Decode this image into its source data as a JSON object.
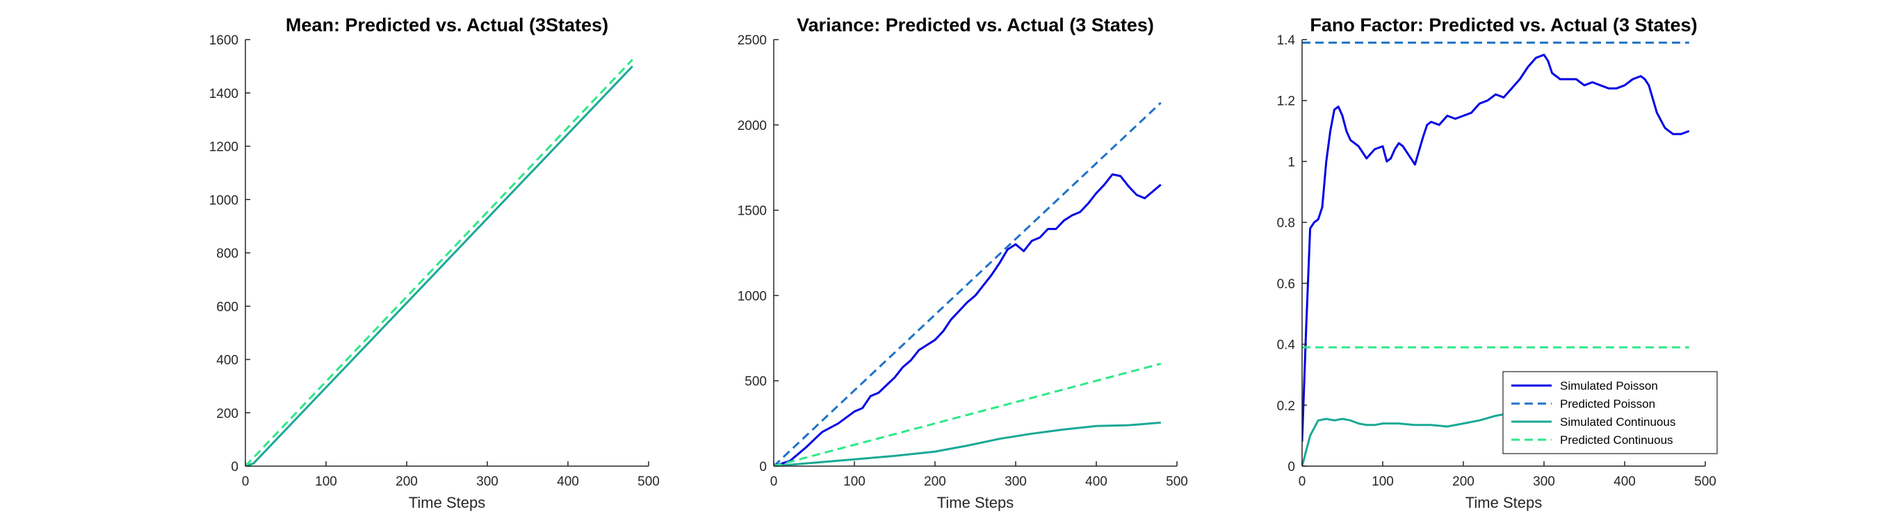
{
  "colors": {
    "sim_poisson": "#0000e6",
    "pred_poisson": "#1f73c8",
    "sim_continuous": "#1aa896",
    "pred_continuous": "#2ee887",
    "axis": "#262626"
  },
  "chart_data": [
    {
      "type": "line",
      "title": "Mean: Predicted vs. Actual (3States)",
      "xlabel": "Time Steps",
      "ylabel": "",
      "xlim": [
        0,
        500
      ],
      "ylim": [
        0,
        1600
      ],
      "xticks": [
        0,
        100,
        200,
        300,
        400,
        500
      ],
      "yticks": [
        0,
        200,
        400,
        600,
        800,
        1000,
        1200,
        1400,
        1600
      ],
      "grid": false,
      "series": [
        {
          "key": "sim_continuous",
          "dashed": false,
          "x": [
            0,
            10,
            480
          ],
          "y": [
            0,
            10,
            1500
          ]
        },
        {
          "key": "pred_continuous",
          "dashed": true,
          "x": [
            0,
            480
          ],
          "y": [
            0,
            1525
          ]
        }
      ]
    },
    {
      "type": "line",
      "title": "Variance: Predicted vs. Actual (3 States)",
      "xlabel": "Time Steps",
      "ylabel": "",
      "xlim": [
        0,
        500
      ],
      "ylim": [
        0,
        2500
      ],
      "xticks": [
        0,
        100,
        200,
        300,
        400,
        500
      ],
      "yticks": [
        0,
        500,
        1000,
        1500,
        2000,
        2500
      ],
      "grid": false,
      "series": [
        {
          "key": "sim_poisson",
          "dashed": false,
          "x": [
            0,
            20,
            40,
            60,
            80,
            100,
            110,
            120,
            130,
            150,
            160,
            170,
            180,
            190,
            200,
            210,
            220,
            230,
            240,
            250,
            260,
            270,
            280,
            290,
            300,
            310,
            320,
            330,
            340,
            350,
            360,
            370,
            380,
            390,
            400,
            410,
            420,
            430,
            440,
            450,
            460,
            470,
            480
          ],
          "y": [
            0,
            30,
            110,
            200,
            250,
            320,
            340,
            410,
            430,
            520,
            580,
            620,
            680,
            710,
            740,
            790,
            860,
            910,
            960,
            1000,
            1060,
            1120,
            1190,
            1270,
            1300,
            1260,
            1320,
            1340,
            1390,
            1390,
            1440,
            1470,
            1490,
            1540,
            1600,
            1650,
            1710,
            1700,
            1640,
            1590,
            1570,
            1610,
            1650
          ]
        },
        {
          "key": "pred_poisson",
          "dashed": true,
          "x": [
            0,
            480
          ],
          "y": [
            0,
            2130
          ]
        },
        {
          "key": "sim_continuous",
          "dashed": false,
          "x": [
            0,
            50,
            100,
            150,
            200,
            240,
            280,
            320,
            360,
            400,
            440,
            480
          ],
          "y": [
            0,
            20,
            40,
            60,
            85,
            120,
            160,
            190,
            215,
            235,
            240,
            255
          ]
        },
        {
          "key": "pred_continuous",
          "dashed": true,
          "x": [
            0,
            480
          ],
          "y": [
            0,
            600
          ]
        }
      ]
    },
    {
      "type": "line",
      "title": "Fano Factor: Predicted vs. Actual (3 States)",
      "xlabel": "Time Steps",
      "ylabel": "",
      "xlim": [
        0,
        500
      ],
      "ylim": [
        0,
        1.4
      ],
      "xticks": [
        0,
        100,
        200,
        300,
        400,
        500
      ],
      "yticks": [
        0,
        0.2,
        0.4,
        0.6,
        0.8,
        1,
        1.2,
        1.4
      ],
      "grid": false,
      "legend": "bottom-right",
      "series": [
        {
          "key": "sim_poisson",
          "dashed": false,
          "name": "Simulated Poisson",
          "x": [
            0,
            5,
            10,
            15,
            20,
            25,
            30,
            35,
            40,
            45,
            50,
            55,
            60,
            65,
            70,
            80,
            90,
            100,
            105,
            110,
            115,
            120,
            125,
            130,
            140,
            150,
            155,
            160,
            170,
            180,
            190,
            200,
            210,
            220,
            230,
            240,
            250,
            260,
            270,
            280,
            290,
            300,
            305,
            310,
            320,
            330,
            340,
            350,
            360,
            370,
            380,
            390,
            400,
            410,
            420,
            425,
            430,
            440,
            450,
            460,
            470,
            480
          ],
          "y": [
            0.08,
            0.45,
            0.78,
            0.8,
            0.81,
            0.85,
            1.0,
            1.1,
            1.17,
            1.18,
            1.15,
            1.1,
            1.07,
            1.06,
            1.05,
            1.01,
            1.04,
            1.05,
            1.0,
            1.01,
            1.04,
            1.06,
            1.05,
            1.03,
            0.99,
            1.08,
            1.12,
            1.13,
            1.12,
            1.15,
            1.14,
            1.15,
            1.16,
            1.19,
            1.2,
            1.22,
            1.21,
            1.24,
            1.27,
            1.31,
            1.34,
            1.35,
            1.33,
            1.29,
            1.27,
            1.27,
            1.27,
            1.25,
            1.26,
            1.25,
            1.24,
            1.24,
            1.25,
            1.27,
            1.28,
            1.27,
            1.25,
            1.16,
            1.11,
            1.09,
            1.09,
            1.1
          ]
        },
        {
          "key": "pred_poisson",
          "dashed": true,
          "name": "Predicted Poisson",
          "x": [
            0,
            480
          ],
          "y": [
            1.39,
            1.39
          ]
        },
        {
          "key": "sim_continuous",
          "dashed": false,
          "name": "Simulated Continuous",
          "x": [
            0,
            10,
            20,
            30,
            40,
            50,
            60,
            70,
            80,
            90,
            100,
            120,
            140,
            160,
            180,
            200,
            220,
            240,
            260,
            280,
            300,
            330,
            360,
            400,
            440,
            480
          ],
          "y": [
            0,
            0.1,
            0.15,
            0.155,
            0.15,
            0.155,
            0.15,
            0.14,
            0.135,
            0.135,
            0.14,
            0.14,
            0.135,
            0.135,
            0.13,
            0.14,
            0.15,
            0.165,
            0.175,
            0.17,
            0.165,
            0.165,
            0.17,
            0.17,
            0.165,
            0.17
          ]
        },
        {
          "key": "pred_continuous",
          "dashed": true,
          "name": "Predicted Continuous",
          "x": [
            0,
            480
          ],
          "y": [
            0.39,
            0.39
          ]
        }
      ]
    }
  ]
}
